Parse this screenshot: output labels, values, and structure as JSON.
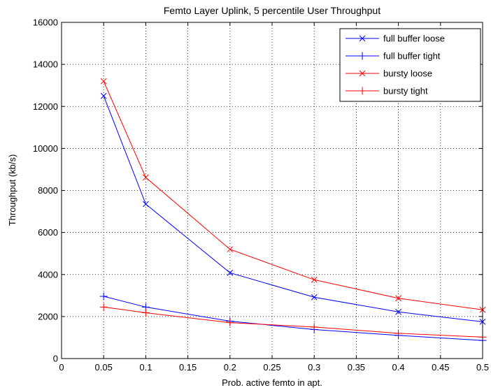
{
  "chart_data": {
    "type": "line",
    "title": "Femto Layer Uplink, 5 percentile User Throughput",
    "xlabel": "Prob. active femto in apt.",
    "ylabel": "Throughput (kb/s)",
    "xlim": [
      0,
      0.5
    ],
    "ylim": [
      0,
      16000
    ],
    "xticks": [
      0,
      0.05,
      0.1,
      0.15,
      0.2,
      0.25,
      0.3,
      0.35,
      0.4,
      0.45,
      0.5
    ],
    "xtick_labels": [
      "0",
      "0.05",
      "0.1",
      "0.15",
      "0.2",
      "0.25",
      "0.3",
      "0.35",
      "0.4",
      "0.45",
      "0.5"
    ],
    "yticks": [
      0,
      2000,
      4000,
      6000,
      8000,
      10000,
      12000,
      14000,
      16000
    ],
    "ytick_labels": [
      "0",
      "2000",
      "4000",
      "6000",
      "8000",
      "10000",
      "12000",
      "14000",
      "16000"
    ],
    "grid": true,
    "grid_style": "dotted",
    "legend_position": "top-right",
    "x": [
      0.05,
      0.1,
      0.2,
      0.3,
      0.4,
      0.5
    ],
    "series": [
      {
        "name": "full buffer loose",
        "color": "#0000ff",
        "marker": "x",
        "values": [
          12500,
          7350,
          4080,
          2920,
          2220,
          1750
        ]
      },
      {
        "name": "full buffer tight",
        "color": "#0000ff",
        "marker": "+",
        "values": [
          2960,
          2450,
          1780,
          1380,
          1100,
          860
        ]
      },
      {
        "name": "bursty loose",
        "color": "#ff0000",
        "marker": "x",
        "values": [
          13200,
          8620,
          5200,
          3750,
          2870,
          2320
        ]
      },
      {
        "name": "bursty tight",
        "color": "#ff0000",
        "marker": "+",
        "values": [
          2450,
          2180,
          1710,
          1500,
          1200,
          1020
        ]
      }
    ]
  }
}
